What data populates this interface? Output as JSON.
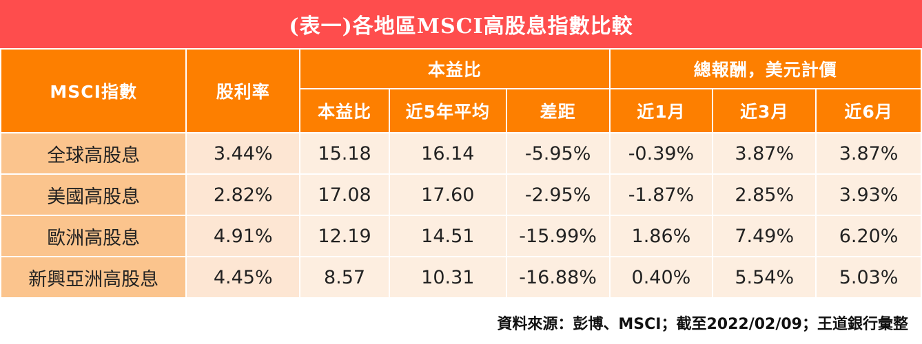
{
  "title": "(表一)各地區MSCI高股息指數比較",
  "headers": {
    "index": "MSCI指數",
    "yield": "股利率",
    "pe_group": "本益比",
    "return_group": "總報酬，美元計價",
    "pe_sub": [
      "本益比",
      "近5年平均",
      "差距"
    ],
    "return_sub": [
      "近1月",
      "近3月",
      "近6月"
    ]
  },
  "rows": [
    {
      "name": "全球高股息",
      "yield": "3.44%",
      "pe": "15.18",
      "pe5y": "16.14",
      "gap": "-5.95%",
      "r1m": "-0.39%",
      "r3m": "3.87%",
      "r6m": "3.87%"
    },
    {
      "name": "美國高股息",
      "yield": "2.82%",
      "pe": "17.08",
      "pe5y": "17.60",
      "gap": "-2.95%",
      "r1m": "-1.87%",
      "r3m": "2.85%",
      "r6m": "3.93%"
    },
    {
      "name": "歐洲高股息",
      "yield": "4.91%",
      "pe": "12.19",
      "pe5y": "14.51",
      "gap": "-15.99%",
      "r1m": "1.86%",
      "r3m": "7.49%",
      "r6m": "6.20%"
    },
    {
      "name": "新興亞洲高股息",
      "yield": "4.45%",
      "pe": "8.57",
      "pe5y": "10.31",
      "gap": "-16.88%",
      "r1m": "0.40%",
      "r3m": "5.54%",
      "r6m": "5.03%"
    }
  ],
  "source": "資料來源：彭博、MSCI；截至2022/02/09；王道銀行彙整"
}
